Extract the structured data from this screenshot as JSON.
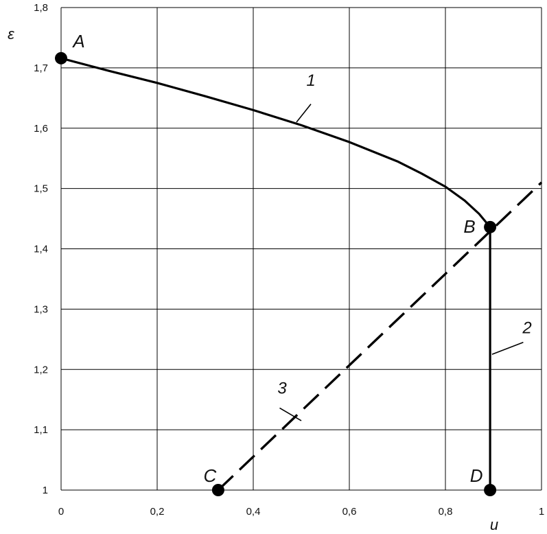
{
  "chart_data": {
    "type": "line",
    "xlabel": "u",
    "ylabel": "ε",
    "xlim": [
      0,
      1
    ],
    "ylim": [
      1,
      1.8
    ],
    "grid": true,
    "x_ticks": [
      "0",
      "0,2",
      "0,4",
      "0,6",
      "0,8",
      "1"
    ],
    "y_ticks": [
      "1",
      "1,1",
      "1,2",
      "1,3",
      "1,4",
      "1,5",
      "1,6",
      "1,7",
      "1,8"
    ],
    "points": [
      {
        "label": "A",
        "x": 0.0,
        "y": 1.716
      },
      {
        "label": "B",
        "x": 0.893,
        "y": 1.436
      },
      {
        "label": "C",
        "x": 0.327,
        "y": 1.0
      },
      {
        "label": "D",
        "x": 0.893,
        "y": 1.0
      }
    ],
    "series": [
      {
        "label": "1",
        "style": "solid",
        "x": [
          0.0,
          0.1,
          0.2,
          0.3,
          0.4,
          0.5,
          0.6,
          0.7,
          0.75,
          0.8,
          0.84,
          0.87,
          0.893
        ],
        "y": [
          1.716,
          1.695,
          1.675,
          1.653,
          1.63,
          1.605,
          1.577,
          1.545,
          1.525,
          1.503,
          1.48,
          1.458,
          1.436
        ]
      },
      {
        "label": "2",
        "style": "solid",
        "x": [
          0.893,
          0.893
        ],
        "y": [
          1.436,
          1.0
        ]
      },
      {
        "label": "3",
        "style": "dashed",
        "x": [
          0.327,
          1.0
        ],
        "y": [
          1.0,
          1.51
        ]
      }
    ],
    "series_label_positions": [
      {
        "text": "1",
        "x": 0.52,
        "y": 1.67
      },
      {
        "text": "2",
        "x": 0.97,
        "y": 1.26
      },
      {
        "text": "3",
        "x": 0.46,
        "y": 1.16
      }
    ],
    "colors": {
      "line": "#000000",
      "grid": "#000000",
      "background": "#ffffff"
    }
  }
}
